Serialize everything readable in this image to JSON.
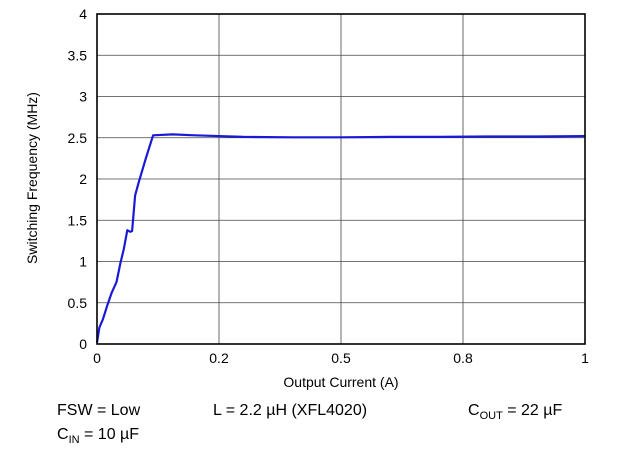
{
  "chart_data": {
    "type": "line",
    "xlabel": "Output Current (A)",
    "ylabel": "Switching Frequency (MHz)",
    "xlim": [
      0,
      1
    ],
    "ylim": [
      0,
      4
    ],
    "x_ticks": [
      0,
      0.25,
      0.5,
      0.75,
      1
    ],
    "x_tick_labels": [
      "0",
      "0.2",
      "0.5",
      "0.8",
      "1"
    ],
    "y_ticks": [
      0,
      0.5,
      1,
      1.5,
      2,
      2.5,
      3,
      3.5,
      4
    ],
    "y_tick_labels": [
      "0",
      "0.5",
      "1",
      "1.5",
      "2",
      "2.5",
      "3",
      "3.5",
      "4"
    ],
    "grid": true,
    "line_color": "#1a1ad6",
    "series": [
      {
        "x": [
          0,
          0.005,
          0.012,
          0.02,
          0.03,
          0.04,
          0.048,
          0.055,
          0.062,
          0.068,
          0.072,
          0.078,
          0.085,
          0.1,
          0.115,
          0.155,
          0.2,
          0.3,
          0.4,
          0.5,
          0.6,
          0.7,
          0.8,
          0.9,
          1.0
        ],
        "y": [
          0.02,
          0.2,
          0.3,
          0.45,
          0.62,
          0.75,
          0.98,
          1.15,
          1.38,
          1.36,
          1.37,
          1.8,
          1.95,
          2.25,
          2.53,
          2.54,
          2.53,
          2.51,
          2.505,
          2.505,
          2.51,
          2.51,
          2.515,
          2.515,
          2.52
        ]
      }
    ]
  },
  "notes": {
    "fsw": "FSW = Low",
    "inductor": "L = 2.2 µH (XFL4020)",
    "cout_prefix": "C",
    "cout_sub": "OUT",
    "cout_value": " = 22 µF",
    "cin_prefix": "C",
    "cin_sub": "IN",
    "cin_value": " = 10 µF"
  }
}
